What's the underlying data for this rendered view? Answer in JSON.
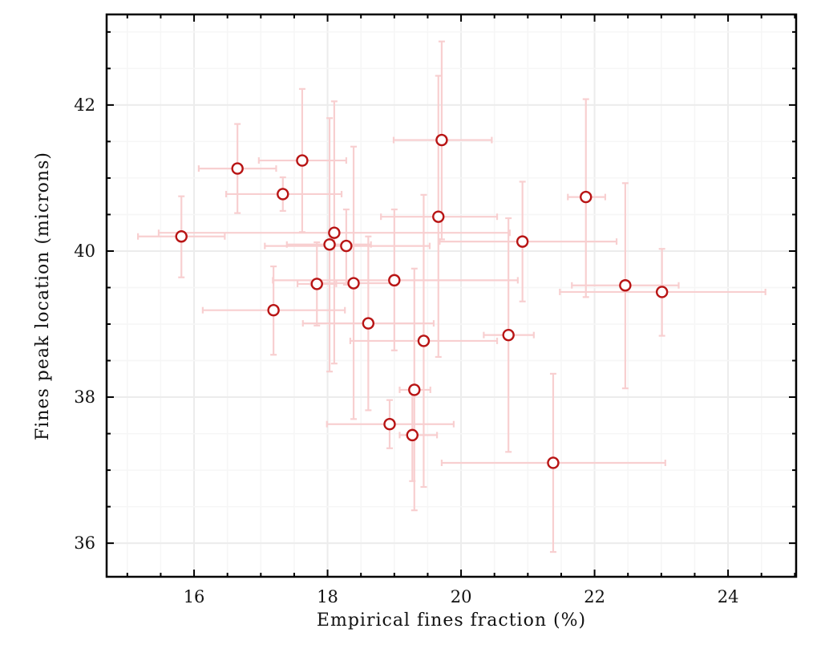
{
  "chart_data": {
    "type": "scatter",
    "title": "",
    "xlabel": "Empirical fines fraction (%)",
    "ylabel": "Fines peak location (microns)",
    "xlim": [
      14.69,
      25.02
    ],
    "ylim": [
      35.54,
      43.24
    ],
    "xticks": [
      16,
      18,
      20,
      22,
      24
    ],
    "yticks": [
      36,
      38,
      40,
      42
    ],
    "xtick_labels": [
      "16",
      "18",
      "20",
      "22",
      "24"
    ],
    "ytick_labels": [
      "36",
      "38",
      "40",
      "42"
    ],
    "minor_step": 0.5,
    "grid": true,
    "colors": {
      "marker": "#b81414",
      "errorbar": "#f8cfd0",
      "grid_major": "#ececec",
      "grid_minor": "#f6f6f6",
      "axis": "#000000"
    },
    "points": [
      {
        "x": 15.81,
        "y": 40.2,
        "xerr": [
          15.16,
          16.46
        ],
        "yerr": [
          39.64,
          40.75
        ]
      },
      {
        "x": 16.65,
        "y": 41.13,
        "xerr": [
          16.07,
          17.23
        ],
        "yerr": [
          40.52,
          41.74
        ]
      },
      {
        "x": 17.62,
        "y": 41.24,
        "xerr": [
          16.97,
          18.28
        ],
        "yerr": [
          40.26,
          42.22
        ]
      },
      {
        "x": 17.33,
        "y": 40.78,
        "xerr": [
          16.48,
          18.21
        ],
        "yerr": [
          40.55,
          41.01
        ]
      },
      {
        "x": 18.1,
        "y": 40.25,
        "xerr": [
          15.47,
          20.73
        ],
        "yerr": [
          38.46,
          42.05
        ]
      },
      {
        "x": 18.03,
        "y": 40.09,
        "xerr": [
          17.39,
          18.65
        ],
        "yerr": [
          38.35,
          41.82
        ]
      },
      {
        "x": 18.28,
        "y": 40.07,
        "xerr": [
          17.06,
          19.53
        ],
        "yerr": [
          39.54,
          40.57
        ]
      },
      {
        "x": 17.84,
        "y": 39.55,
        "xerr": [
          17.55,
          18.13
        ],
        "yerr": [
          38.98,
          40.12
        ]
      },
      {
        "x": 18.39,
        "y": 39.56,
        "xerr": [
          17.75,
          19.03
        ],
        "yerr": [
          37.7,
          41.43
        ]
      },
      {
        "x": 19.0,
        "y": 39.6,
        "xerr": [
          17.18,
          20.85
        ],
        "yerr": [
          38.64,
          40.57
        ]
      },
      {
        "x": 17.19,
        "y": 39.19,
        "xerr": [
          16.13,
          18.26
        ],
        "yerr": [
          38.58,
          39.79
        ]
      },
      {
        "x": 18.61,
        "y": 39.01,
        "xerr": [
          17.63,
          19.59
        ],
        "yerr": [
          37.82,
          40.2
        ]
      },
      {
        "x": 19.44,
        "y": 38.77,
        "xerr": [
          18.34,
          20.54
        ],
        "yerr": [
          36.77,
          40.77
        ]
      },
      {
        "x": 19.66,
        "y": 40.47,
        "xerr": [
          18.8,
          20.54
        ],
        "yerr": [
          38.55,
          42.4
        ]
      },
      {
        "x": 19.71,
        "y": 41.52,
        "xerr": [
          18.99,
          20.46
        ],
        "yerr": [
          40.16,
          42.87
        ]
      },
      {
        "x": 20.92,
        "y": 40.13,
        "xerr": [
          19.68,
          22.33
        ],
        "yerr": [
          39.31,
          40.95
        ]
      },
      {
        "x": 20.71,
        "y": 38.85,
        "xerr": [
          20.34,
          21.09
        ],
        "yerr": [
          37.25,
          40.45
        ]
      },
      {
        "x": 21.87,
        "y": 40.74,
        "xerr": [
          21.6,
          22.16
        ],
        "yerr": [
          39.37,
          42.08
        ]
      },
      {
        "x": 22.46,
        "y": 39.53,
        "xerr": [
          21.66,
          23.26
        ],
        "yerr": [
          38.12,
          40.93
        ]
      },
      {
        "x": 23.01,
        "y": 39.44,
        "xerr": [
          21.48,
          24.56
        ],
        "yerr": [
          38.84,
          40.03
        ]
      },
      {
        "x": 19.3,
        "y": 38.1,
        "xerr": [
          19.08,
          19.54
        ],
        "yerr": [
          36.45,
          39.76
        ]
      },
      {
        "x": 18.93,
        "y": 37.63,
        "xerr": [
          17.99,
          19.89
        ],
        "yerr": [
          37.3,
          37.96
        ]
      },
      {
        "x": 19.27,
        "y": 37.48,
        "xerr": [
          19.08,
          19.64
        ],
        "yerr": [
          36.85,
          38.1
        ]
      },
      {
        "x": 21.38,
        "y": 37.1,
        "xerr": [
          19.71,
          23.06
        ],
        "yerr": [
          35.88,
          38.32
        ]
      }
    ]
  }
}
